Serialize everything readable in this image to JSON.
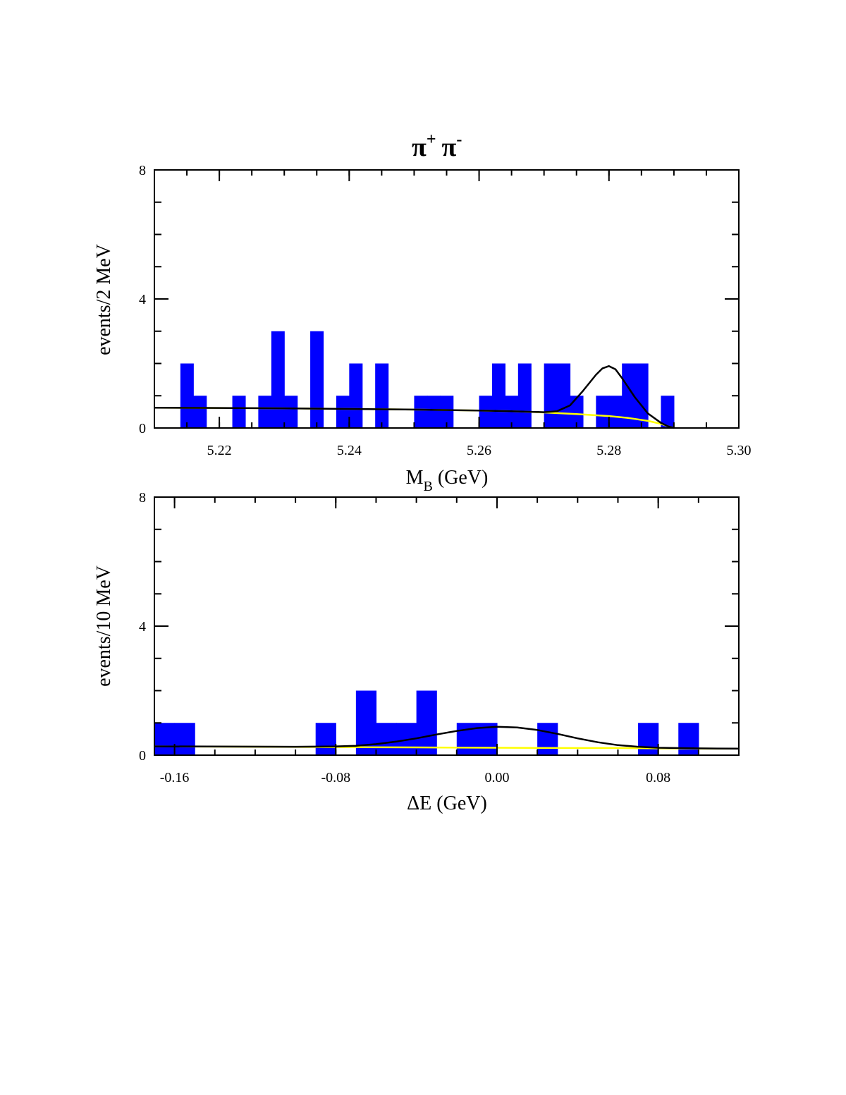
{
  "title": "π+ π-",
  "title_main": "π",
  "title_plus": "+",
  "title_minus": "-",
  "colors": {
    "bars": "#0000ff",
    "total_fit": "#000000",
    "background_fit": "#ffff00",
    "frame": "#000000"
  },
  "chart_data": [
    {
      "type": "bar",
      "ylabel": "events/2 MeV",
      "xlabel": "M_B (GeV)",
      "xlabel_main": "M",
      "xlabel_sub": "B",
      "xlabel_rest": "  (GeV)",
      "xlim": [
        5.21,
        5.3
      ],
      "ylim": [
        0,
        8
      ],
      "bin_width": 0.002,
      "xticks": [
        "5.22",
        "5.24",
        "5.26",
        "5.28",
        "5.30"
      ],
      "xtick_values": [
        5.22,
        5.24,
        5.26,
        5.28,
        5.3
      ],
      "yticks": [
        "0",
        "4",
        "8"
      ],
      "ytick_values": [
        0,
        4,
        8
      ],
      "bins": [
        {
          "x": 5.214,
          "count": 2
        },
        {
          "x": 5.216,
          "count": 1
        },
        {
          "x": 5.222,
          "count": 1
        },
        {
          "x": 5.226,
          "count": 1
        },
        {
          "x": 5.228,
          "count": 3
        },
        {
          "x": 5.23,
          "count": 1
        },
        {
          "x": 5.234,
          "count": 3
        },
        {
          "x": 5.238,
          "count": 1
        },
        {
          "x": 5.24,
          "count": 2
        },
        {
          "x": 5.244,
          "count": 2
        },
        {
          "x": 5.25,
          "count": 1
        },
        {
          "x": 5.252,
          "count": 1
        },
        {
          "x": 5.254,
          "count": 1
        },
        {
          "x": 5.26,
          "count": 1
        },
        {
          "x": 5.262,
          "count": 2
        },
        {
          "x": 5.264,
          "count": 1
        },
        {
          "x": 5.266,
          "count": 2
        },
        {
          "x": 5.27,
          "count": 2
        },
        {
          "x": 5.272,
          "count": 2
        },
        {
          "x": 5.274,
          "count": 1
        },
        {
          "x": 5.278,
          "count": 1
        },
        {
          "x": 5.28,
          "count": 1
        },
        {
          "x": 5.282,
          "count": 2
        },
        {
          "x": 5.284,
          "count": 2
        },
        {
          "x": 5.288,
          "count": 1
        }
      ],
      "background_curve": {
        "x": [
          5.21,
          5.22,
          5.23,
          5.24,
          5.25,
          5.26,
          5.265,
          5.27,
          5.275,
          5.28,
          5.283,
          5.286,
          5.288,
          5.289,
          5.29
        ],
        "y": [
          0.63,
          0.62,
          0.61,
          0.59,
          0.57,
          0.54,
          0.52,
          0.48,
          0.43,
          0.37,
          0.31,
          0.22,
          0.13,
          0.06,
          0.0
        ]
      },
      "total_curve": {
        "x": [
          5.21,
          5.22,
          5.23,
          5.24,
          5.25,
          5.26,
          5.265,
          5.27,
          5.272,
          5.274,
          5.276,
          5.278,
          5.279,
          5.28,
          5.281,
          5.282,
          5.284,
          5.286,
          5.288,
          5.289,
          5.29
        ],
        "y": [
          0.63,
          0.62,
          0.61,
          0.59,
          0.57,
          0.54,
          0.52,
          0.49,
          0.52,
          0.7,
          1.15,
          1.65,
          1.85,
          1.92,
          1.82,
          1.55,
          0.95,
          0.45,
          0.16,
          0.06,
          0.0
        ]
      }
    },
    {
      "type": "bar",
      "ylabel": "events/10 MeV",
      "xlabel": "ΔE (GeV)",
      "xlim": [
        -0.17,
        0.12
      ],
      "ylim": [
        0,
        8
      ],
      "bin_width": 0.01,
      "xticks": [
        "-0.16",
        "-0.08",
        "0.00",
        "0.08"
      ],
      "xtick_values": [
        -0.16,
        -0.08,
        0.0,
        0.08
      ],
      "yticks": [
        "0",
        "4",
        "8"
      ],
      "ytick_values": [
        0,
        4,
        8
      ],
      "bins": [
        {
          "x": -0.17,
          "count": 1
        },
        {
          "x": -0.16,
          "count": 1
        },
        {
          "x": -0.09,
          "count": 1
        },
        {
          "x": -0.07,
          "count": 2
        },
        {
          "x": -0.06,
          "count": 1
        },
        {
          "x": -0.05,
          "count": 1
        },
        {
          "x": -0.04,
          "count": 2
        },
        {
          "x": -0.02,
          "count": 1
        },
        {
          "x": -0.01,
          "count": 1
        },
        {
          "x": 0.02,
          "count": 1
        },
        {
          "x": 0.07,
          "count": 1
        },
        {
          "x": 0.09,
          "count": 1
        }
      ],
      "background_curve": {
        "x": [
          -0.17,
          -0.12,
          -0.08,
          -0.04,
          0.0,
          0.04,
          0.06,
          0.08,
          0.12
        ],
        "y": [
          0.27,
          0.26,
          0.25,
          0.24,
          0.23,
          0.22,
          0.22,
          0.21,
          0.2
        ]
      },
      "total_curve": {
        "x": [
          -0.17,
          -0.1,
          -0.08,
          -0.07,
          -0.06,
          -0.05,
          -0.04,
          -0.03,
          -0.02,
          -0.01,
          0.0,
          0.01,
          0.02,
          0.03,
          0.04,
          0.05,
          0.06,
          0.07,
          0.08,
          0.1,
          0.12
        ],
        "y": [
          0.27,
          0.26,
          0.27,
          0.29,
          0.34,
          0.42,
          0.52,
          0.64,
          0.75,
          0.84,
          0.88,
          0.86,
          0.78,
          0.66,
          0.52,
          0.4,
          0.31,
          0.26,
          0.23,
          0.21,
          0.2
        ]
      }
    }
  ]
}
